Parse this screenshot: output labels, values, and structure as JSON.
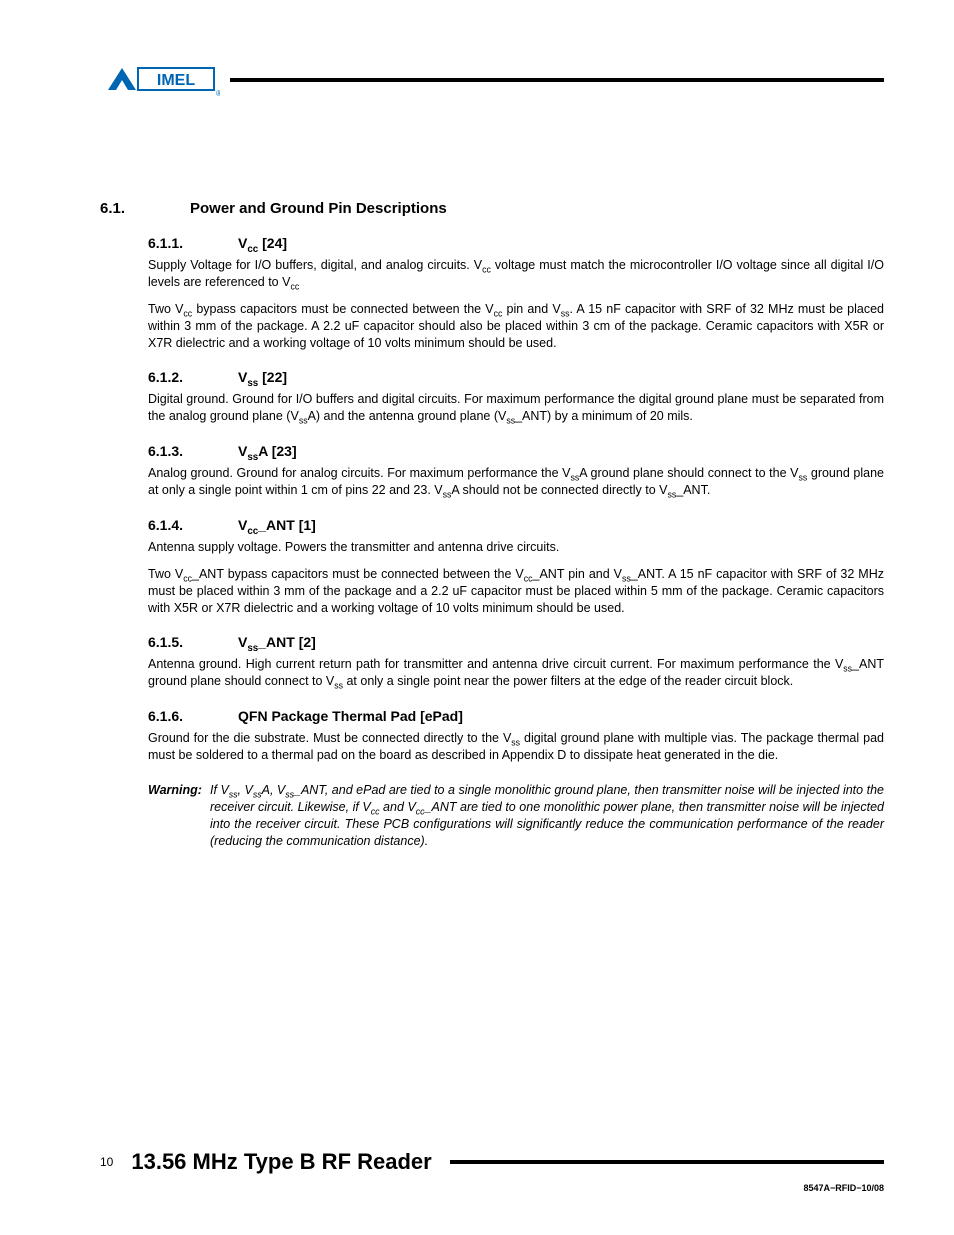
{
  "logo": {
    "fill": "#0066b3",
    "text": "ATMEL"
  },
  "section": {
    "num": "6.1.",
    "title": "Power and Ground Pin Descriptions"
  },
  "subs": [
    {
      "num": "6.1.1.",
      "title": "V<sub>cc</sub>  [24]",
      "paras": [
        "Supply Voltage for I/O buffers, digital, and analog circuits.  V<sub>cc</sub> voltage must match the microcontroller I/O voltage since all digital I/O levels are referenced to V<sub>cc</sub>",
        "Two V<sub>cc</sub> bypass capacitors must be connected between the V<sub>cc</sub> pin and V<sub>ss</sub>. A 15 nF capacitor with SRF of 32 MHz must be placed within 3 mm of the package. A 2.2 uF capacitor should also be placed within 3 cm of the package. Ceramic capacitors with X5R or X7R dielectric and a working voltage of 10 volts minimum should be used."
      ]
    },
    {
      "num": "6.1.2.",
      "title": "V<sub>ss</sub>  [22]",
      "paras": [
        "Digital ground. Ground for I/O buffers and digital circuits. For maximum performance the digital ground plane must be separated from the analog ground plane (V<sub>ss</sub>A) and the antenna ground plane (V<sub>ss</sub>_ANT) by a minimum of 20 mils."
      ]
    },
    {
      "num": "6.1.3.",
      "title": "V<sub>ss</sub>A  [23]",
      "paras": [
        "Analog ground.  Ground for analog circuits.  For maximum performance the V<sub>ss</sub>A ground plane should connect to the V<sub>ss</sub> ground plane at only a single point within 1 cm of pins 22 and 23. V<sub>ss</sub>A should not be connected directly to V<sub>ss</sub>_ANT."
      ]
    },
    {
      "num": "6.1.4.",
      "title": "V<sub>cc</sub>_ANT  [1]",
      "paras": [
        "Antenna supply voltage.  Powers the transmitter and antenna drive circuits.",
        "Two V<sub>cc</sub>_ANT bypass capacitors must be connected between the V<sub>cc</sub>_ANT pin and V<sub>ss</sub>_ANT.  A 15 nF capacitor with SRF of 32 MHz must be placed within 3 mm of       the package and a 2.2 uF capacitor must be placed within 5 mm of the package.  Ceramic capacitors with X5R or X7R dielectric and a working voltage of 10 volts minimum should be used."
      ]
    },
    {
      "num": "6.1.5.",
      "title": "V<sub>ss</sub>_ANT  [2]",
      "paras": [
        "Antenna ground. High current return path for transmitter and antenna drive circuit current. For maximum performance the V<sub>ss</sub>_ANT ground plane should connect to V<sub>ss</sub> at only a single point near the power filters at the edge of the reader circuit block."
      ]
    },
    {
      "num": "6.1.6.",
      "title": "QFN Package Thermal Pad  [ePad]",
      "paras": [
        "Ground for the die substrate. Must be connected directly to the V<sub>ss</sub> digital ground plane with multiple vias. The package thermal pad must be soldered to a thermal pad on the board as described in Appendix D to dissipate heat generated in the die."
      ]
    }
  ],
  "warning": {
    "label": "Warning:",
    "text": "If V<sub>ss</sub>, V<sub>ss</sub>A, V<sub>ss</sub>_ANT, and ePad are tied to a single monolithic ground plane, then transmitter noise will be injected into the receiver circuit.  Likewise, if V<sub>cc</sub> and V<sub>cc</sub>_ANT are tied to one monolithic power plane, then transmitter noise will be injected into the receiver circuit.  These PCB configurations will significantly reduce the communication performance of the reader (reducing the communication distance)."
  },
  "footer": {
    "page": "10",
    "title": "13.56 MHz Type B RF Reader",
    "docid": "8547A−RFID−10/08"
  }
}
